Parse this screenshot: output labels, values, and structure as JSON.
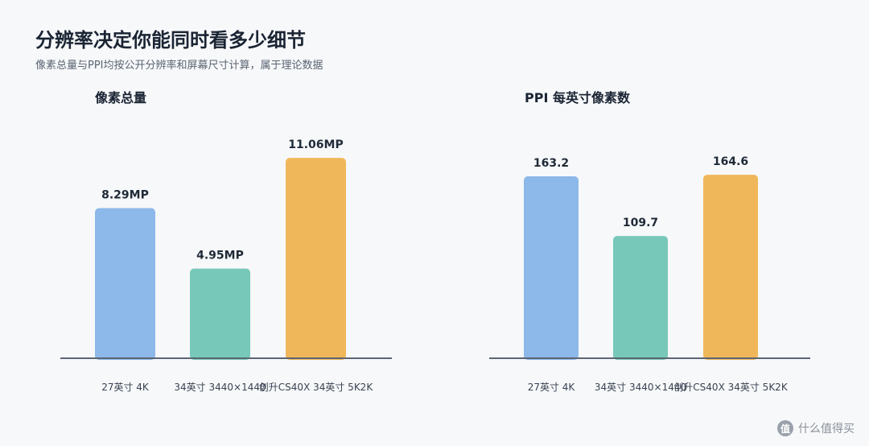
{
  "header": {
    "title": "分辨率决定你能同时看多少细节",
    "subtitle": "像素总量与PPI均按公开分辨率和屏幕尺寸计算，属于理论数据"
  },
  "colors": {
    "blue": "#8db8ea",
    "teal": "#77c8b8",
    "orange": "#f0b75a",
    "axis": "#5b6574"
  },
  "watermark": {
    "text": "什么值得买",
    "badge": "值"
  },
  "chart_data": [
    {
      "type": "bar",
      "title": "像素总量",
      "categories": [
        "27英寸 4K",
        "34英寸 3440×1440",
        "创升CS40X 34英寸 5K2K"
      ],
      "values": [
        8.29,
        4.95,
        11.06
      ],
      "value_labels": [
        "8.29MP",
        "4.95MP",
        "11.06MP"
      ],
      "unit": "MP",
      "ylim": [
        0,
        12.0
      ],
      "bar_colors": [
        "#8db8ea",
        "#77c8b8",
        "#f0b75a"
      ],
      "grid": false,
      "legend": "none"
    },
    {
      "type": "bar",
      "title": "PPI 每英寸像素数",
      "categories": [
        "27英寸 4K",
        "34英寸 3440×1440",
        "创升CS40X 34英寸 5K2K"
      ],
      "values": [
        163.2,
        109.7,
        164.6
      ],
      "value_labels": [
        "163.2",
        "109.7",
        "164.6"
      ],
      "unit": "PPI",
      "ylim": [
        0,
        195
      ],
      "bar_colors": [
        "#8db8ea",
        "#77c8b8",
        "#f0b75a"
      ],
      "grid": false,
      "legend": "none"
    }
  ]
}
